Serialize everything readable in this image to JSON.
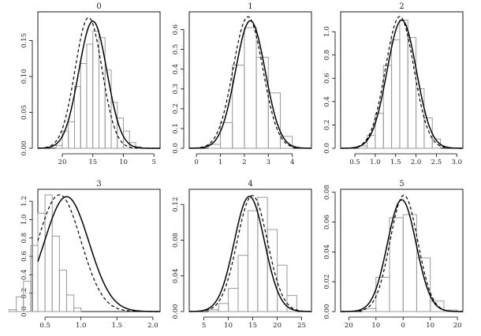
{
  "chart_data": [
    {
      "type": "histogram",
      "title": "0",
      "x_reversed": true,
      "xlim": [
        24,
        4
      ],
      "ylim": [
        0,
        0.19
      ],
      "x_ticks": [
        20,
        15,
        10,
        5
      ],
      "y_ticks": [
        0.0,
        0.05,
        0.1,
        0.15
      ],
      "x_tick_labels": [
        "20",
        "15",
        "10",
        "5"
      ],
      "y_tick_labels": [
        "0.00",
        "0.05",
        "0.10",
        "0.15"
      ],
      "bins": [
        21,
        20,
        19,
        18,
        17,
        16,
        15,
        14,
        13,
        12,
        11,
        10,
        9,
        8
      ],
      "values": [
        0.004,
        0.024,
        0.037,
        0.086,
        0.118,
        0.145,
        0.163,
        0.154,
        0.109,
        0.064,
        0.042,
        0.024,
        0.008,
        0.002
      ],
      "series": [
        {
          "name": "",
          "style": "solid",
          "mean": 15.0,
          "sd": 2.3,
          "peak": 0.177
        },
        {
          "name": "",
          "style": "dashed",
          "mean": 15.7,
          "sd": 2.2,
          "peak": 0.182
        }
      ]
    },
    {
      "type": "histogram",
      "title": "1",
      "xlim": [
        -0.3,
        4.8
      ],
      "ylim": [
        0,
        0.69
      ],
      "x_ticks": [
        0,
        1,
        2,
        3,
        4
      ],
      "y_ticks": [
        0.0,
        0.1,
        0.2,
        0.3,
        0.4,
        0.5,
        0.6
      ],
      "x_tick_labels": [
        "0",
        "1",
        "2",
        "3",
        "4"
      ],
      "y_tick_labels": [
        "0.0",
        "0.1",
        "0.2",
        "0.3",
        "0.4",
        "0.5",
        "0.6"
      ],
      "bins": [
        0.5,
        1.0,
        1.5,
        2.0,
        2.5,
        3.0,
        3.5
      ],
      "bin_width": 0.5,
      "values": [
        0.02,
        0.13,
        0.42,
        0.61,
        0.46,
        0.28,
        0.06
      ],
      "series": [
        {
          "name": "",
          "style": "solid",
          "mean": 2.25,
          "sd": 0.62,
          "peak": 0.645
        },
        {
          "name": "",
          "style": "dashed",
          "mean": 2.15,
          "sd": 0.62,
          "peak": 0.665
        }
      ]
    },
    {
      "type": "histogram",
      "title": "2",
      "xlim": [
        0.15,
        3.15
      ],
      "ylim": [
        0,
        1.17
      ],
      "x_ticks": [
        0.5,
        1.0,
        1.5,
        2.0,
        2.5,
        3.0
      ],
      "y_ticks": [
        0.0,
        0.2,
        0.4,
        0.6,
        0.8,
        1.0
      ],
      "x_tick_labels": [
        "0.5",
        "1.0",
        "1.5",
        "2.0",
        "2.5",
        "3.0"
      ],
      "y_tick_labels": [
        "0.0",
        "0.2",
        "0.4",
        "0.6",
        "0.8",
        "1.0"
      ],
      "bins": [
        0.6,
        0.8,
        1.0,
        1.2,
        1.4,
        1.6,
        1.8,
        2.0,
        2.2,
        2.4
      ],
      "bin_width": 0.2,
      "values": [
        0.02,
        0.11,
        0.3,
        0.71,
        0.93,
        1.1,
        0.95,
        0.51,
        0.26,
        0.08
      ],
      "series": [
        {
          "name": "",
          "style": "solid",
          "mean": 1.65,
          "sd": 0.36,
          "peak": 1.1
        },
        {
          "name": "",
          "style": "dashed",
          "mean": 1.6,
          "sd": 0.35,
          "peak": 1.13
        }
      ]
    },
    {
      "type": "histogram",
      "title": "3",
      "xlim": [
        0.4,
        2.1
      ],
      "ylim": [
        0,
        1.33
      ],
      "x_ticks": [
        0.5,
        1.0,
        1.5,
        2.0
      ],
      "y_ticks": [
        0.0,
        0.2,
        0.4,
        0.6,
        0.8,
        1.0,
        1.2
      ],
      "x_tick_labels": [
        "0.5",
        "1.0",
        "1.5",
        "2.0"
      ],
      "y_tick_labels": [
        "0.0",
        "0.2",
        "0.4",
        "0.6",
        "0.8",
        "1.0",
        "1.2"
      ],
      "bins": [
        0.0,
        0.1,
        0.2,
        0.3,
        0.4,
        0.5,
        0.6,
        0.7,
        0.8,
        0.9,
        1.0,
        1.1,
        1.2,
        1.3,
        1.4,
        1.5
      ],
      "bin_width": 0.1,
      "values": [
        0.02,
        0.16,
        0.33,
        0.72,
        1.07,
        1.27,
        0.82,
        0.45,
        0.18,
        0.04,
        0.0,
        0.0,
        0.0,
        0.0,
        0.0,
        0.0
      ],
      "series": [
        {
          "name": "",
          "style": "solid",
          "mean": 0.8,
          "sd": 0.31,
          "peak": 1.25
        },
        {
          "name": "",
          "style": "dashed",
          "mean": 0.7,
          "sd": 0.3,
          "peak": 1.27
        }
      ]
    },
    {
      "type": "histogram",
      "title": "4",
      "xlim": [
        2,
        27
      ],
      "ylim": [
        0,
        0.137
      ],
      "x_ticks": [
        5,
        10,
        15,
        20,
        25
      ],
      "y_ticks": [
        0.0,
        0.04,
        0.08,
        0.12
      ],
      "x_tick_labels": [
        "5",
        "10",
        "15",
        "20",
        "25"
      ],
      "y_tick_labels": [
        "0.00",
        "0.04",
        "0.08",
        "0.12"
      ],
      "bins": [
        6,
        8,
        10,
        12,
        14,
        16,
        18,
        20,
        22
      ],
      "bin_width": 2,
      "values": [
        0.002,
        0.009,
        0.026,
        0.063,
        0.113,
        0.128,
        0.092,
        0.052,
        0.018
      ],
      "series": [
        {
          "name": "",
          "style": "solid",
          "mean": 14.3,
          "sd": 3.1,
          "peak": 0.129
        },
        {
          "name": "",
          "style": "dashed",
          "mean": 14.9,
          "sd": 3.1,
          "peak": 0.13
        }
      ]
    },
    {
      "type": "histogram",
      "title": "5",
      "x_reversed": true,
      "xlim": [
        23,
        -22
      ],
      "ylim": [
        0,
        0.082
      ],
      "x_ticks": [
        20,
        10,
        0,
        10,
        20
      ],
      "x_tick_values": [
        20,
        10,
        0,
        -10,
        -20
      ],
      "y_ticks": [
        0.0,
        0.02,
        0.04,
        0.06,
        0.08
      ],
      "x_tick_labels": [
        "20",
        "10",
        "0",
        "10",
        "20"
      ],
      "y_tick_labels": [
        "0.00",
        "0.02",
        "0.04",
        "0.06",
        "0.08"
      ],
      "bins": [
        15,
        10,
        5,
        0,
        -5,
        -10,
        -15
      ],
      "bin_width": 5,
      "values": [
        0.002,
        0.023,
        0.063,
        0.065,
        0.036,
        0.007,
        0.001
      ],
      "series": [
        {
          "name": "",
          "style": "solid",
          "mean": 0.5,
          "sd": 5.3,
          "peak": 0.075
        },
        {
          "name": "",
          "style": "dashed",
          "mean": -0.3,
          "sd": 5.1,
          "peak": 0.078
        }
      ]
    }
  ]
}
